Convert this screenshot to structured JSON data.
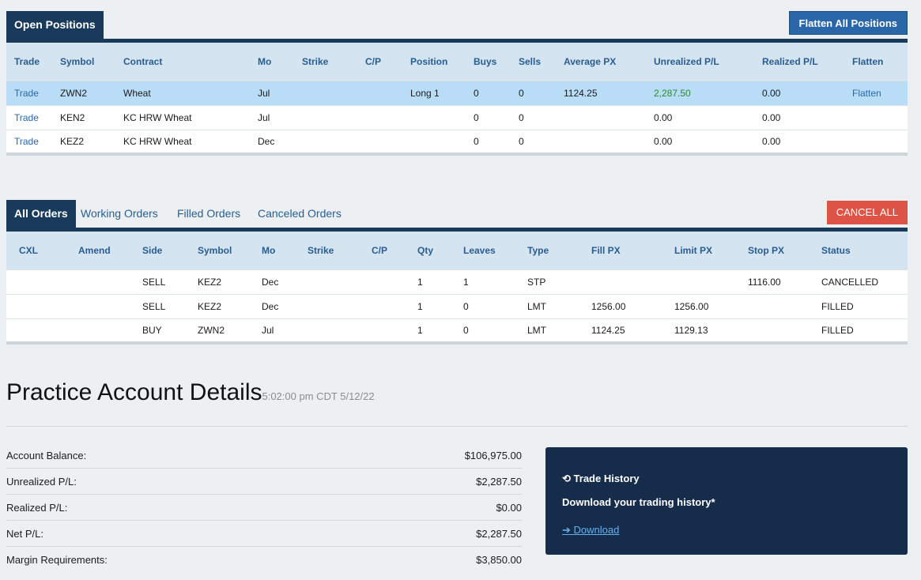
{
  "positions": {
    "tab": "Open Positions",
    "flatten_all": "Flatten All Positions",
    "headers": [
      "Trade",
      "Symbol",
      "Contract",
      "Mo",
      "Strike",
      "C/P",
      "Position",
      "Buys",
      "Sells",
      "Average PX",
      "Unrealized P/L",
      "Realized P/L",
      "Flatten"
    ],
    "rows": [
      {
        "trade": "Trade",
        "symbol": "ZWN2",
        "contract": "Wheat",
        "mo": "Jul",
        "strike": "",
        "cp": "",
        "position": "Long 1",
        "buys": "0",
        "sells": "0",
        "avg": "1124.25",
        "unreal": "2,287.50",
        "real": "0.00",
        "flatten": "Flatten"
      },
      {
        "trade": "Trade",
        "symbol": "KEN2",
        "contract": "KC HRW Wheat",
        "mo": "Jul",
        "strike": "",
        "cp": "",
        "position": "",
        "buys": "0",
        "sells": "0",
        "avg": "",
        "unreal": "0.00",
        "real": "0.00",
        "flatten": ""
      },
      {
        "trade": "Trade",
        "symbol": "KEZ2",
        "contract": "KC HRW Wheat",
        "mo": "Dec",
        "strike": "",
        "cp": "",
        "position": "",
        "buys": "0",
        "sells": "0",
        "avg": "",
        "unreal": "0.00",
        "real": "0.00",
        "flatten": ""
      }
    ]
  },
  "orders": {
    "tabs": [
      "All Orders",
      "Working Orders",
      "Filled Orders",
      "Canceled Orders"
    ],
    "cancel_all": "CANCEL ALL",
    "headers": [
      "CXL",
      "Amend",
      "Side",
      "Symbol",
      "Mo",
      "Strike",
      "C/P",
      "Qty",
      "Leaves",
      "Type",
      "Fill PX",
      "Limit PX",
      "Stop PX",
      "Status"
    ],
    "rows": [
      {
        "cxl": "",
        "amend": "",
        "side": "SELL",
        "symbol": "KEZ2",
        "mo": "Dec",
        "strike": "",
        "cp": "",
        "qty": "1",
        "leaves": "1",
        "type": "STP",
        "fill": "",
        "limit": "",
        "stop": "1116.00",
        "status": "CANCELLED"
      },
      {
        "cxl": "",
        "amend": "",
        "side": "SELL",
        "symbol": "KEZ2",
        "mo": "Dec",
        "strike": "",
        "cp": "",
        "qty": "1",
        "leaves": "0",
        "type": "LMT",
        "fill": "1256.00",
        "limit": "1256.00",
        "stop": "",
        "status": "FILLED"
      },
      {
        "cxl": "",
        "amend": "",
        "side": "BUY",
        "symbol": "ZWN2",
        "mo": "Jul",
        "strike": "",
        "cp": "",
        "qty": "1",
        "leaves": "0",
        "type": "LMT",
        "fill": "1124.25",
        "limit": "1129.13",
        "stop": "",
        "status": "FILLED"
      }
    ]
  },
  "details": {
    "title": "Practice Account Details",
    "timestamp": "5:02:00 pm CDT 5/12/22",
    "rows": [
      {
        "label": "Account Balance:",
        "value": "$106,975.00"
      },
      {
        "label": "Unrealized P/L:",
        "value": "$2,287.50"
      },
      {
        "label": "Realized P/L:",
        "value": "$0.00"
      },
      {
        "label": "Net P/L:",
        "value": "$2,287.50"
      },
      {
        "label": "Margin Requirements:",
        "value": "$3,850.00"
      }
    ]
  },
  "history": {
    "icon": "history-icon",
    "title": "Trade History",
    "desc": "Download your trading history*",
    "link_icon": "arrow-right-icon",
    "link": "Download"
  },
  "colors": {
    "navy": "#1a3a5c",
    "accent": "#2a67a8",
    "danger": "#dd5346",
    "gain": "#2c8a2c"
  }
}
